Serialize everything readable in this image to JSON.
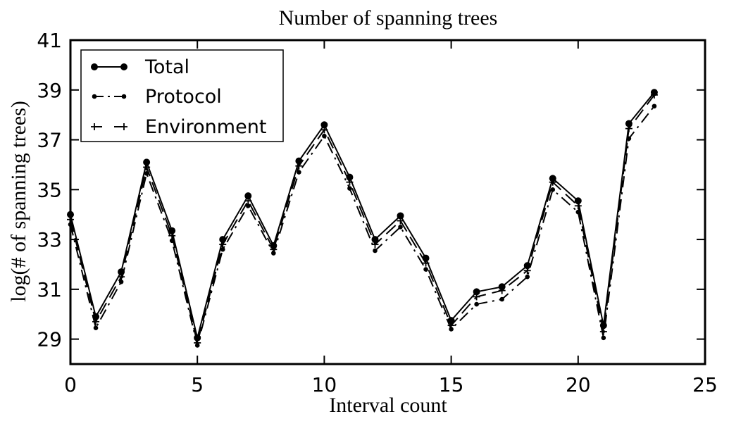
{
  "chart_data": {
    "type": "line",
    "title": "Number of spanning trees",
    "xlabel": "Interval count",
    "ylabel": "log(# of spanning trees)",
    "xlim": [
      0,
      25
    ],
    "ylim": [
      28,
      41
    ],
    "xticks": [
      0,
      5,
      10,
      15,
      20,
      25
    ],
    "yticks": [
      29,
      31,
      33,
      35,
      37,
      39,
      41
    ],
    "grid": false,
    "legend_position": "top-left",
    "x": [
      0,
      1,
      2,
      3,
      4,
      5,
      6,
      7,
      8,
      9,
      10,
      11,
      12,
      13,
      14,
      15,
      16,
      17,
      18,
      19,
      20,
      21,
      22,
      23
    ],
    "series": [
      {
        "name": "Total",
        "line_style": "solid",
        "marker": "circle",
        "color": "#000000",
        "values": [
          34.0,
          29.9,
          31.7,
          36.1,
          33.35,
          29.05,
          33.0,
          34.75,
          32.75,
          36.15,
          37.6,
          35.5,
          33.0,
          33.95,
          32.25,
          29.75,
          30.9,
          31.1,
          31.95,
          35.45,
          34.55,
          29.55,
          37.65,
          38.9
        ]
      },
      {
        "name": "Protocol",
        "line_style": "dash-dot",
        "marker": "dot",
        "color": "#000000",
        "values": [
          33.6,
          29.45,
          31.3,
          35.65,
          32.95,
          28.75,
          32.6,
          34.35,
          32.45,
          35.7,
          37.15,
          35.05,
          32.55,
          33.5,
          31.8,
          29.4,
          30.4,
          30.6,
          31.5,
          35.0,
          34.1,
          29.05,
          37.05,
          38.35
        ]
      },
      {
        "name": "Environment",
        "line_style": "dashed",
        "marker": "plus",
        "color": "#000000",
        "values": [
          33.8,
          29.7,
          31.5,
          35.9,
          33.15,
          28.85,
          32.8,
          34.55,
          32.6,
          35.95,
          37.4,
          35.3,
          32.8,
          33.75,
          32.05,
          29.55,
          30.7,
          30.95,
          31.75,
          35.3,
          34.35,
          29.3,
          37.45,
          38.8
        ]
      }
    ]
  }
}
